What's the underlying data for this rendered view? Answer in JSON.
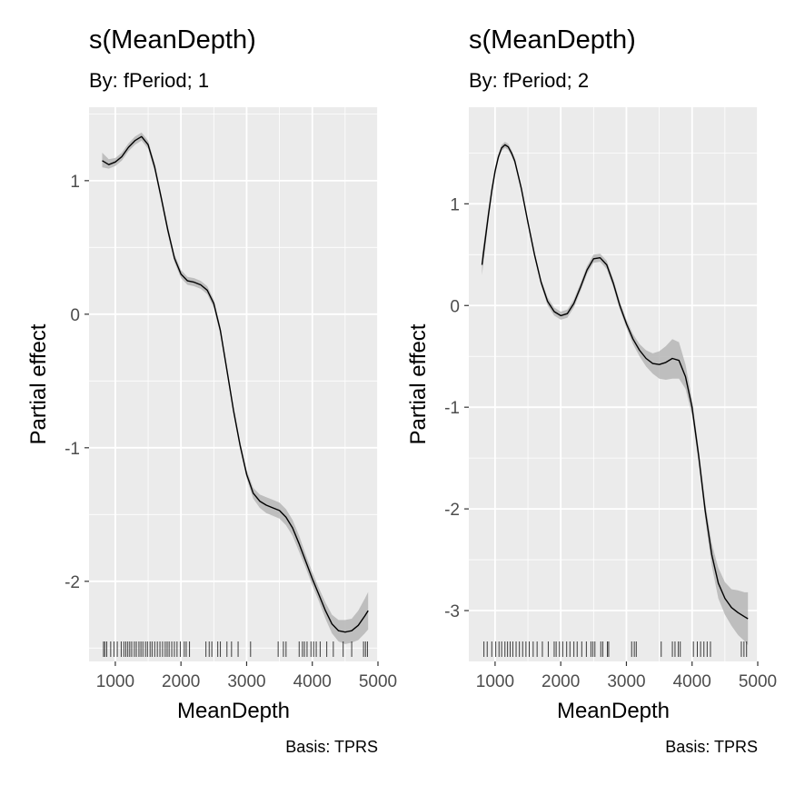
{
  "chart_data": [
    {
      "type": "line",
      "title": "s(MeanDepth)",
      "subtitle": "By: fPeriod; 1",
      "xlabel": "MeanDepth",
      "ylabel": "Partial effect",
      "caption": "Basis: TPRS",
      "xlim": [
        600,
        5000
      ],
      "ylim": [
        -2.6,
        1.55
      ],
      "xticks": [
        1000,
        2000,
        3000,
        4000,
        5000
      ],
      "xtick_labels": [
        "1000",
        "2000",
        "3000",
        "4000",
        "5000"
      ],
      "yticks": [
        1,
        0,
        -1,
        -2
      ],
      "ytick_labels": [
        "1",
        "0",
        "-1",
        "-2"
      ],
      "grid": true,
      "series": [
        {
          "x": [
            800,
            900,
            1000,
            1100,
            1200,
            1300,
            1400,
            1500,
            1600,
            1700,
            1800,
            1900,
            2000,
            2100,
            2200,
            2300,
            2400,
            2500,
            2600,
            2700,
            2800,
            2900,
            3000,
            3100,
            3200,
            3300,
            3400,
            3500,
            3600,
            3700,
            3800,
            3900,
            4000,
            4100,
            4200,
            4300,
            4400,
            4500,
            4600,
            4700,
            4800,
            4850
          ],
          "y": [
            1.15,
            1.12,
            1.14,
            1.18,
            1.25,
            1.3,
            1.33,
            1.27,
            1.1,
            0.87,
            0.63,
            0.42,
            0.3,
            0.25,
            0.24,
            0.22,
            0.18,
            0.08,
            -0.12,
            -0.42,
            -0.72,
            -0.98,
            -1.2,
            -1.34,
            -1.4,
            -1.43,
            -1.45,
            -1.47,
            -1.52,
            -1.6,
            -1.72,
            -1.85,
            -1.98,
            -2.1,
            -2.22,
            -2.32,
            -2.37,
            -2.38,
            -2.37,
            -2.33,
            -2.26,
            -2.22
          ],
          "lower": [
            1.1,
            1.09,
            1.11,
            1.15,
            1.22,
            1.27,
            1.3,
            1.24,
            1.07,
            0.84,
            0.6,
            0.39,
            0.27,
            0.22,
            0.21,
            0.19,
            0.15,
            0.05,
            -0.15,
            -0.45,
            -0.75,
            -1.01,
            -1.23,
            -1.38,
            -1.45,
            -1.49,
            -1.51,
            -1.53,
            -1.58,
            -1.66,
            -1.78,
            -1.9,
            -2.03,
            -2.15,
            -2.28,
            -2.39,
            -2.45,
            -2.47,
            -2.46,
            -2.44,
            -2.39,
            -2.36
          ],
          "upper": [
            1.21,
            1.16,
            1.17,
            1.21,
            1.28,
            1.33,
            1.36,
            1.3,
            1.13,
            0.9,
            0.66,
            0.45,
            0.33,
            0.28,
            0.27,
            0.25,
            0.21,
            0.11,
            -0.09,
            -0.39,
            -0.69,
            -0.95,
            -1.17,
            -1.3,
            -1.35,
            -1.37,
            -1.39,
            -1.41,
            -1.46,
            -1.54,
            -1.66,
            -1.8,
            -1.93,
            -2.05,
            -2.16,
            -2.25,
            -2.29,
            -2.29,
            -2.28,
            -2.22,
            -2.13,
            -2.08
          ]
        }
      ],
      "rug": [
        820,
        840,
        870,
        930,
        980,
        1030,
        1090,
        1130,
        1160,
        1190,
        1220,
        1250,
        1290,
        1320,
        1360,
        1390,
        1420,
        1460,
        1490,
        1530,
        1560,
        1600,
        1640,
        1680,
        1720,
        1760,
        1790,
        1820,
        1860,
        1900,
        1940,
        1990,
        2050,
        2080,
        2130,
        2380,
        2430,
        2470,
        2560,
        2600,
        2700,
        2770,
        2870,
        3060,
        3480,
        3560,
        3600,
        3800,
        3850,
        3880,
        3920,
        3980,
        4020,
        4060,
        4120,
        4220,
        4320,
        4470,
        4600,
        4780,
        4810,
        4840
      ]
    },
    {
      "type": "line",
      "title": "s(MeanDepth)",
      "subtitle": "By: fPeriod; 2",
      "xlabel": "MeanDepth",
      "ylabel": "Partial effect",
      "caption": "Basis: TPRS",
      "xlim": [
        600,
        5000
      ],
      "ylim": [
        -3.5,
        1.95
      ],
      "xticks": [
        1000,
        2000,
        3000,
        4000,
        5000
      ],
      "xtick_labels": [
        "1000",
        "2000",
        "3000",
        "4000",
        "5000"
      ],
      "yticks": [
        1,
        0,
        -1,
        -2,
        -3
      ],
      "ytick_labels": [
        "1",
        "0",
        "-1",
        "-2",
        "-3"
      ],
      "grid": true,
      "series": [
        {
          "x": [
            800,
            850,
            900,
            950,
            1000,
            1050,
            1100,
            1150,
            1200,
            1250,
            1300,
            1400,
            1500,
            1600,
            1700,
            1800,
            1900,
            2000,
            2100,
            2200,
            2300,
            2400,
            2500,
            2600,
            2700,
            2800,
            2900,
            3000,
            3100,
            3200,
            3300,
            3400,
            3500,
            3600,
            3700,
            3800,
            3900,
            4000,
            4100,
            4200,
            4300,
            4400,
            4500,
            4600,
            4700,
            4800,
            4850
          ],
          "y": [
            0.4,
            0.65,
            0.9,
            1.13,
            1.32,
            1.46,
            1.55,
            1.58,
            1.56,
            1.5,
            1.42,
            1.15,
            0.82,
            0.5,
            0.23,
            0.04,
            -0.06,
            -0.1,
            -0.08,
            0.02,
            0.18,
            0.35,
            0.46,
            0.47,
            0.4,
            0.22,
            0.0,
            -0.18,
            -0.33,
            -0.44,
            -0.52,
            -0.57,
            -0.58,
            -0.56,
            -0.52,
            -0.54,
            -0.7,
            -1.0,
            -1.48,
            -2.02,
            -2.45,
            -2.73,
            -2.88,
            -2.97,
            -3.02,
            -3.06,
            -3.08
          ],
          "lower": [
            0.3,
            0.57,
            0.84,
            1.08,
            1.28,
            1.43,
            1.52,
            1.55,
            1.53,
            1.47,
            1.39,
            1.12,
            0.79,
            0.47,
            0.2,
            0.0,
            -0.1,
            -0.14,
            -0.12,
            -0.02,
            0.14,
            0.31,
            0.42,
            0.43,
            0.36,
            0.18,
            -0.04,
            -0.22,
            -0.38,
            -0.5,
            -0.6,
            -0.67,
            -0.72,
            -0.73,
            -0.72,
            -0.72,
            -0.82,
            -1.08,
            -1.55,
            -2.1,
            -2.56,
            -2.88,
            -3.04,
            -3.15,
            -3.24,
            -3.3,
            -3.34
          ],
          "upper": [
            0.5,
            0.73,
            0.96,
            1.18,
            1.36,
            1.49,
            1.58,
            1.61,
            1.59,
            1.53,
            1.45,
            1.18,
            0.85,
            0.53,
            0.26,
            0.08,
            -0.02,
            -0.06,
            -0.04,
            0.06,
            0.22,
            0.39,
            0.5,
            0.51,
            0.44,
            0.26,
            0.04,
            -0.14,
            -0.28,
            -0.38,
            -0.44,
            -0.47,
            -0.45,
            -0.4,
            -0.33,
            -0.36,
            -0.58,
            -0.92,
            -1.41,
            -1.94,
            -2.34,
            -2.58,
            -2.72,
            -2.79,
            -2.8,
            -2.82,
            -2.82
          ]
        }
      ],
      "rug": [
        830,
        880,
        950,
        1010,
        1060,
        1100,
        1150,
        1190,
        1230,
        1270,
        1320,
        1370,
        1420,
        1470,
        1520,
        1580,
        1640,
        1720,
        1810,
        1900,
        1930,
        1980,
        2030,
        2090,
        2140,
        2200,
        2250,
        2320,
        2390,
        2460,
        2490,
        2520,
        2610,
        2640,
        2710,
        2730,
        3080,
        3120,
        3150,
        3530,
        3700,
        3740,
        3790,
        3820,
        4020,
        4080,
        4130,
        4180,
        4230,
        4280,
        4750,
        4790,
        4830
      ]
    }
  ]
}
